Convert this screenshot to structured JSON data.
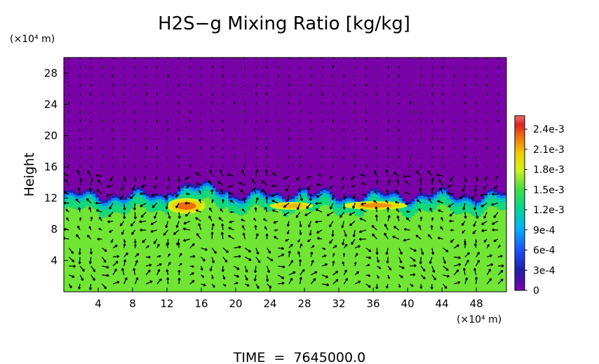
{
  "chart_data": {
    "type": "heatmap",
    "title": "H2S−g Mixing Ratio [kg/kg]",
    "ylabel": "Height",
    "xlabel": "",
    "x_unit": "(×10⁴ m)",
    "y_unit": "(×10⁴ m)",
    "footer": "TIME  =  7645000.0",
    "xlim": [
      0,
      51.5
    ],
    "ylim": [
      0,
      30
    ],
    "x_ticks": [
      4,
      8,
      12,
      16,
      20,
      24,
      28,
      32,
      36,
      40,
      44,
      48
    ],
    "y_ticks": [
      4,
      8,
      12,
      16,
      20,
      24,
      28
    ],
    "colorbar": {
      "min": 0,
      "max": 0.0026,
      "tick_values": [
        0,
        0.0003,
        0.0006,
        0.0009,
        0.0012,
        0.0015,
        0.0018,
        0.0021,
        0.0024
      ],
      "tick_labels": [
        "0",
        "3e-4",
        "6e-4",
        "9e-4",
        "1.2e-3",
        "1.5e-3",
        "1.8e-3",
        "2.1e-3",
        "2.4e-3"
      ]
    },
    "field": {
      "upper_layer_value": 0,
      "lower_layer_value": 0.0016,
      "layer_top_height": 12.5,
      "high_regions": [
        {
          "x_range": [
            12,
            16.5
          ],
          "y_range": [
            10,
            12
          ],
          "value": 0.0023
        },
        {
          "x_range": [
            24,
            29
          ],
          "y_range": [
            10.5,
            11.5
          ],
          "value": 0.0021
        },
        {
          "x_range": [
            32.5,
            40
          ],
          "y_range": [
            10.5,
            11.6
          ],
          "value": 0.0022
        }
      ]
    },
    "wind_vectors": "present (overlaid arrows)"
  },
  "colors": {
    "background_low": "#7a00a8",
    "layer_mid": "#d4f01a",
    "accent_high": "#e8402a",
    "axis": "#000000"
  }
}
